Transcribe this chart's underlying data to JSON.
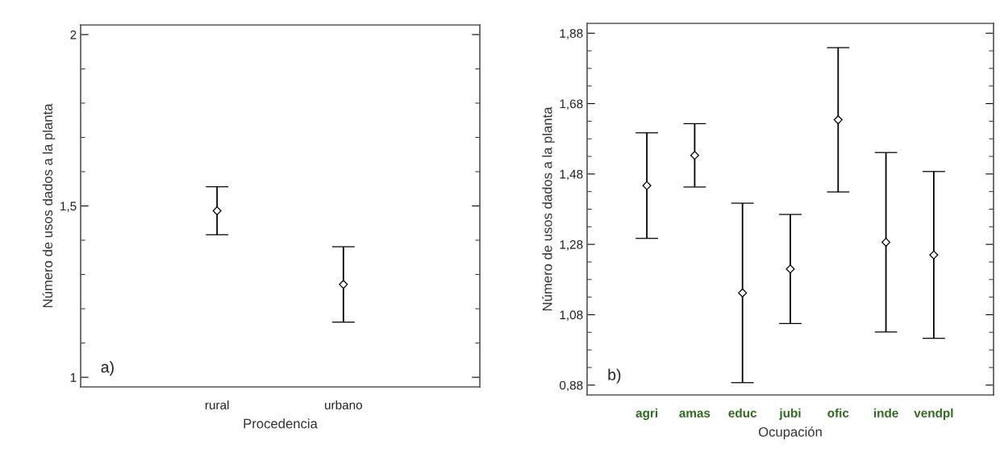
{
  "chart_data": [
    {
      "type": "scatter",
      "xlabel": "Procedencia",
      "ylabel": "Número de usos dados a la planta",
      "annotations": [
        "a)"
      ],
      "categories": [
        "rural",
        "urbano"
      ],
      "ylim": [
        0.972,
        2.028
      ],
      "yticks": [
        1,
        {
          "value": 1.5,
          "label": "1,5"
        },
        2
      ],
      "marker": "diamond",
      "color": "#000000",
      "values": [
        1.486,
        1.271
      ],
      "errors": [
        0.07,
        0.11
      ]
    },
    {
      "type": "scatter",
      "xlabel": "Ocupación",
      "ylabel": "Número de usos dados a la planta",
      "annotations": [
        "b)"
      ],
      "categories": [
        "agri",
        "amas",
        "educ",
        "jubi",
        "ofic",
        "inde",
        "vendpl"
      ],
      "ylim": [
        0.852,
        1.908
      ],
      "yticks": [
        {
          "value": 0.88,
          "label": "0,88"
        },
        {
          "value": 1.08,
          "label": "1,08"
        },
        {
          "value": 1.28,
          "label": "1,28"
        },
        {
          "value": 1.48,
          "label": "1,48"
        },
        {
          "value": 1.68,
          "label": "1,68"
        },
        {
          "value": 1.88,
          "label": "1,88"
        }
      ],
      "marker": "diamond",
      "color": "#000000",
      "values": [
        1.447,
        1.533,
        1.142,
        1.21,
        1.634,
        1.286,
        1.25
      ],
      "errors": [
        0.15,
        0.09,
        0.255,
        0.155,
        0.205,
        0.255,
        0.237
      ]
    }
  ]
}
